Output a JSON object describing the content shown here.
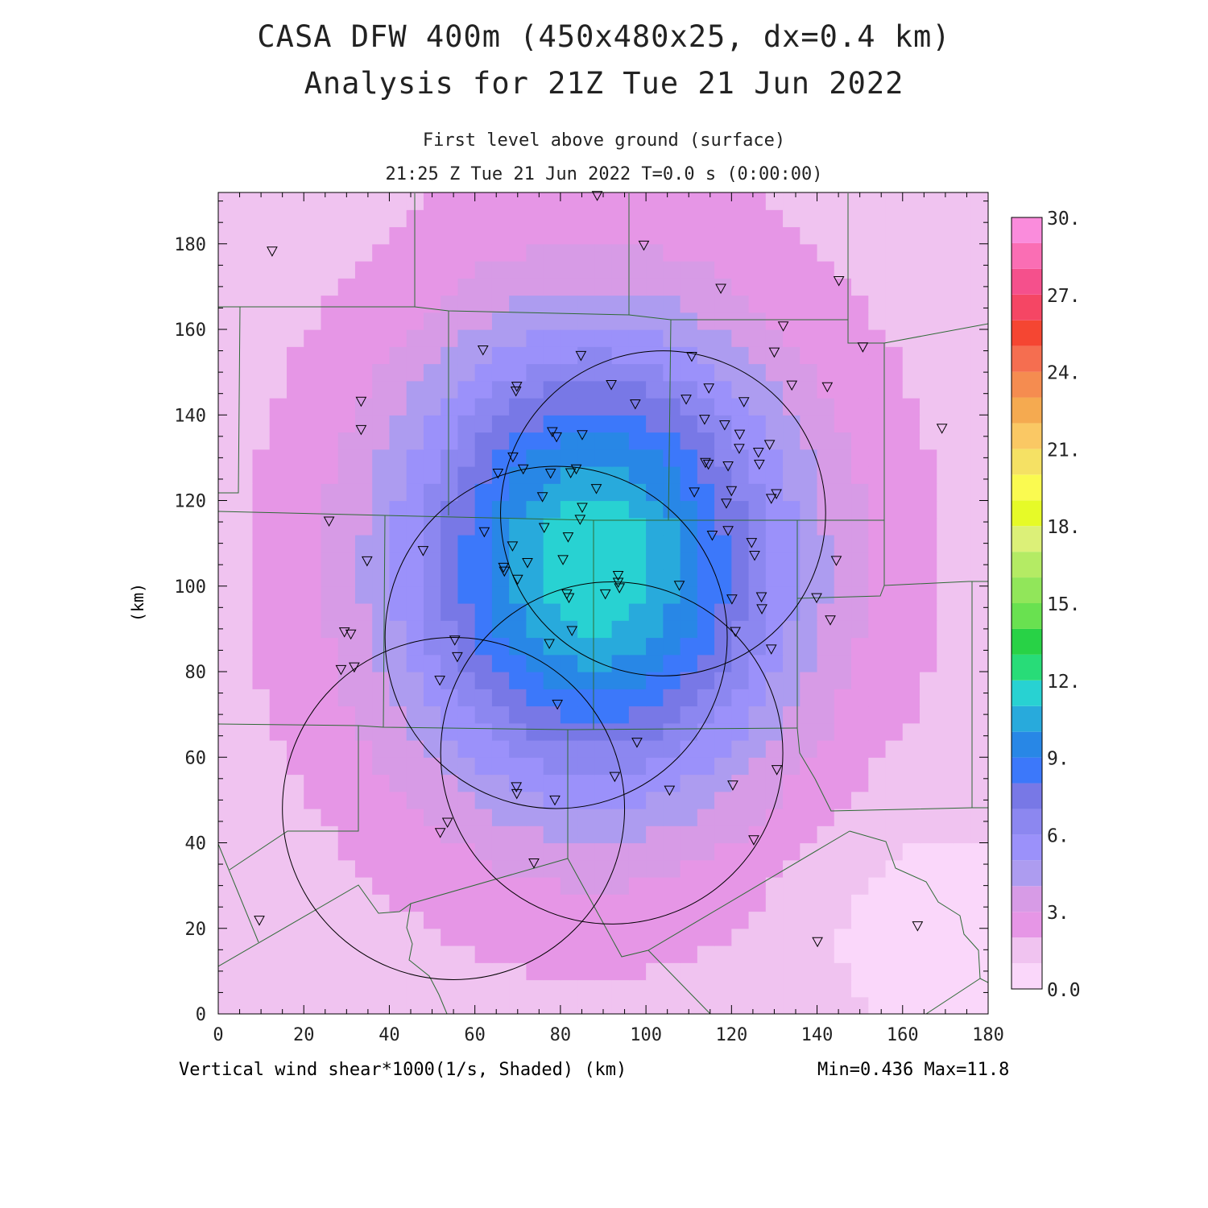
{
  "header": {
    "title_line1": "CASA DFW 400m (450x480x25, dx=0.4 km)",
    "title_line2": "Analysis for 21Z Tue 21 Jun 2022",
    "subtitle_line1": "First level above ground (surface)",
    "subtitle_line2": "21:25 Z Tue 21 Jun 2022   T=0.0 s (0:00:00)"
  },
  "footer": {
    "left": "Vertical wind shear*1000(1/s, Shaded)  (km)",
    "right": "Min=0.436 Max=11.8"
  },
  "chart_data": {
    "type": "heatmap",
    "variable": "Vertical wind shear*1000(1/s, Shaded)",
    "x_unit": "km",
    "y_unit": "km",
    "ylabel": "(km)",
    "xlabel": "",
    "xlim": [
      0,
      180
    ],
    "ylim": [
      0,
      192
    ],
    "xticks": [
      0,
      20,
      40,
      60,
      80,
      100,
      120,
      140,
      160,
      180
    ],
    "yticks": [
      0,
      20,
      40,
      60,
      80,
      100,
      120,
      140,
      160,
      180
    ],
    "min": 0.436,
    "max": 11.8,
    "max_location_km": [
      88,
      107
    ],
    "colorbar": {
      "levels": [
        0,
        1,
        2,
        3,
        4,
        5,
        6,
        7,
        8,
        9,
        10,
        11,
        12,
        13,
        14,
        15,
        16,
        17,
        18,
        19,
        20,
        21,
        22,
        23,
        24,
        25,
        26,
        27,
        28,
        29,
        30
      ],
      "labels": [
        "0.0",
        "3.",
        "6.",
        "9.",
        "12.",
        "15.",
        "18.",
        "21.",
        "24.",
        "27.",
        "30."
      ],
      "label_values": [
        0,
        3,
        6,
        9,
        12,
        15,
        18,
        21,
        24,
        27,
        30
      ],
      "colors": [
        "#fad7fa",
        "#f0c3f0",
        "#e696e6",
        "#d79be6",
        "#ad9cf0",
        "#9b91fa",
        "#8c87f0",
        "#7878e6",
        "#3c78fa",
        "#2887e6",
        "#28aadc",
        "#28d2d2",
        "#28dc78",
        "#28d246",
        "#69e150",
        "#91e65a",
        "#b4eb64",
        "#dcf078",
        "#e6fa28",
        "#fafa50",
        "#f5e164",
        "#fac864",
        "#f5aa50",
        "#f58c50",
        "#f56e50",
        "#f54632",
        "#f54664",
        "#f5508c",
        "#fa6eb4",
        "#fa8cdc"
      ]
    },
    "shear_core": {
      "center_km": [
        88,
        105
      ],
      "sigma_km": [
        32,
        38
      ],
      "peak": 11.8,
      "background": 1.6
    },
    "radar_rings": [
      {
        "center_km": [
          104,
          117
        ],
        "radius_km": 38
      },
      {
        "center_km": [
          79,
          88
        ],
        "radius_km": 40
      },
      {
        "center_km": [
          92,
          61
        ],
        "radius_km": 40
      },
      {
        "center_km": [
          55,
          48
        ],
        "radius_km": 40
      }
    ],
    "stations_km": [
      [
        12.6,
        178.3
      ],
      [
        88.6,
        191.3
      ],
      [
        99.5,
        179.7
      ],
      [
        117.5,
        169.6
      ],
      [
        145.1,
        171.4
      ],
      [
        132.1,
        160.8
      ],
      [
        150.7,
        155.9
      ],
      [
        61.9,
        155.2
      ],
      [
        130.0,
        154.7
      ],
      [
        84.8,
        153.9
      ],
      [
        110.7,
        153.7
      ],
      [
        91.9,
        147.1
      ],
      [
        69.8,
        146.7
      ],
      [
        69.6,
        145.6
      ],
      [
        114.7,
        146.3
      ],
      [
        134.1,
        147.0
      ],
      [
        142.4,
        146.6
      ],
      [
        33.4,
        143.2
      ],
      [
        109.4,
        143.7
      ],
      [
        122.9,
        143.1
      ],
      [
        97.5,
        142.6
      ],
      [
        33.4,
        136.6
      ],
      [
        169.2,
        136.9
      ],
      [
        113.7,
        139.0
      ],
      [
        118.4,
        137.7
      ],
      [
        78.1,
        136.1
      ],
      [
        85.1,
        135.4
      ],
      [
        79.1,
        134.9
      ],
      [
        121.9,
        135.5
      ],
      [
        128.9,
        133.1
      ],
      [
        121.8,
        132.2
      ],
      [
        126.3,
        131.3
      ],
      [
        68.9,
        130.2
      ],
      [
        113.9,
        128.9
      ],
      [
        114.6,
        128.5
      ],
      [
        119.2,
        128.1
      ],
      [
        126.5,
        128.5
      ],
      [
        71.3,
        127.4
      ],
      [
        65.4,
        126.4
      ],
      [
        77.7,
        126.4
      ],
      [
        83.7,
        127.4
      ],
      [
        82.4,
        126.5
      ],
      [
        88.4,
        122.8
      ],
      [
        111.3,
        122.0
      ],
      [
        120.0,
        122.3
      ],
      [
        130.5,
        121.6
      ],
      [
        129.3,
        120.5
      ],
      [
        75.8,
        120.9
      ],
      [
        118.8,
        119.4
      ],
      [
        85.1,
        118.4
      ],
      [
        84.6,
        115.6
      ],
      [
        25.9,
        115.2
      ],
      [
        62.2,
        112.7
      ],
      [
        76.2,
        113.7
      ],
      [
        81.8,
        111.5
      ],
      [
        115.5,
        111.9
      ],
      [
        119.2,
        113.0
      ],
      [
        124.7,
        110.2
      ],
      [
        68.8,
        109.4
      ],
      [
        47.9,
        108.3
      ],
      [
        125.4,
        107.2
      ],
      [
        34.8,
        105.9
      ],
      [
        80.6,
        106.2
      ],
      [
        72.3,
        105.5
      ],
      [
        144.5,
        106.0
      ],
      [
        66.7,
        104.4
      ],
      [
        66.9,
        103.5
      ],
      [
        93.5,
        102.5
      ],
      [
        70.0,
        101.6
      ],
      [
        93.5,
        100.9
      ],
      [
        93.8,
        99.6
      ],
      [
        107.8,
        100.2
      ],
      [
        81.5,
        98.2
      ],
      [
        90.5,
        98.2
      ],
      [
        82.0,
        97.3
      ],
      [
        127.0,
        97.5
      ],
      [
        120.1,
        97.0
      ],
      [
        139.9,
        97.3
      ],
      [
        127.1,
        94.7
      ],
      [
        143.1,
        92.1
      ],
      [
        29.5,
        89.3
      ],
      [
        31.0,
        88.8
      ],
      [
        82.7,
        89.6
      ],
      [
        120.9,
        89.4
      ],
      [
        55.3,
        87.4
      ],
      [
        77.4,
        86.6
      ],
      [
        129.3,
        85.3
      ],
      [
        55.9,
        83.5
      ],
      [
        28.7,
        80.5
      ],
      [
        31.8,
        81.1
      ],
      [
        51.8,
        78.0
      ],
      [
        79.3,
        72.4
      ],
      [
        97.9,
        63.5
      ],
      [
        130.6,
        57.1
      ],
      [
        92.7,
        55.5
      ],
      [
        120.3,
        53.5
      ],
      [
        69.7,
        53.1
      ],
      [
        69.8,
        51.5
      ],
      [
        105.5,
        52.3
      ],
      [
        78.7,
        50.0
      ],
      [
        53.6,
        44.8
      ],
      [
        51.9,
        42.4
      ],
      [
        125.2,
        40.7
      ],
      [
        73.8,
        35.3
      ],
      [
        9.6,
        21.9
      ],
      [
        163.5,
        20.6
      ],
      [
        140.1,
        16.9
      ]
    ]
  },
  "axes_style": {
    "frame_color": "#000000",
    "border_color": "#2f6a36",
    "ring_color": "#000000"
  }
}
